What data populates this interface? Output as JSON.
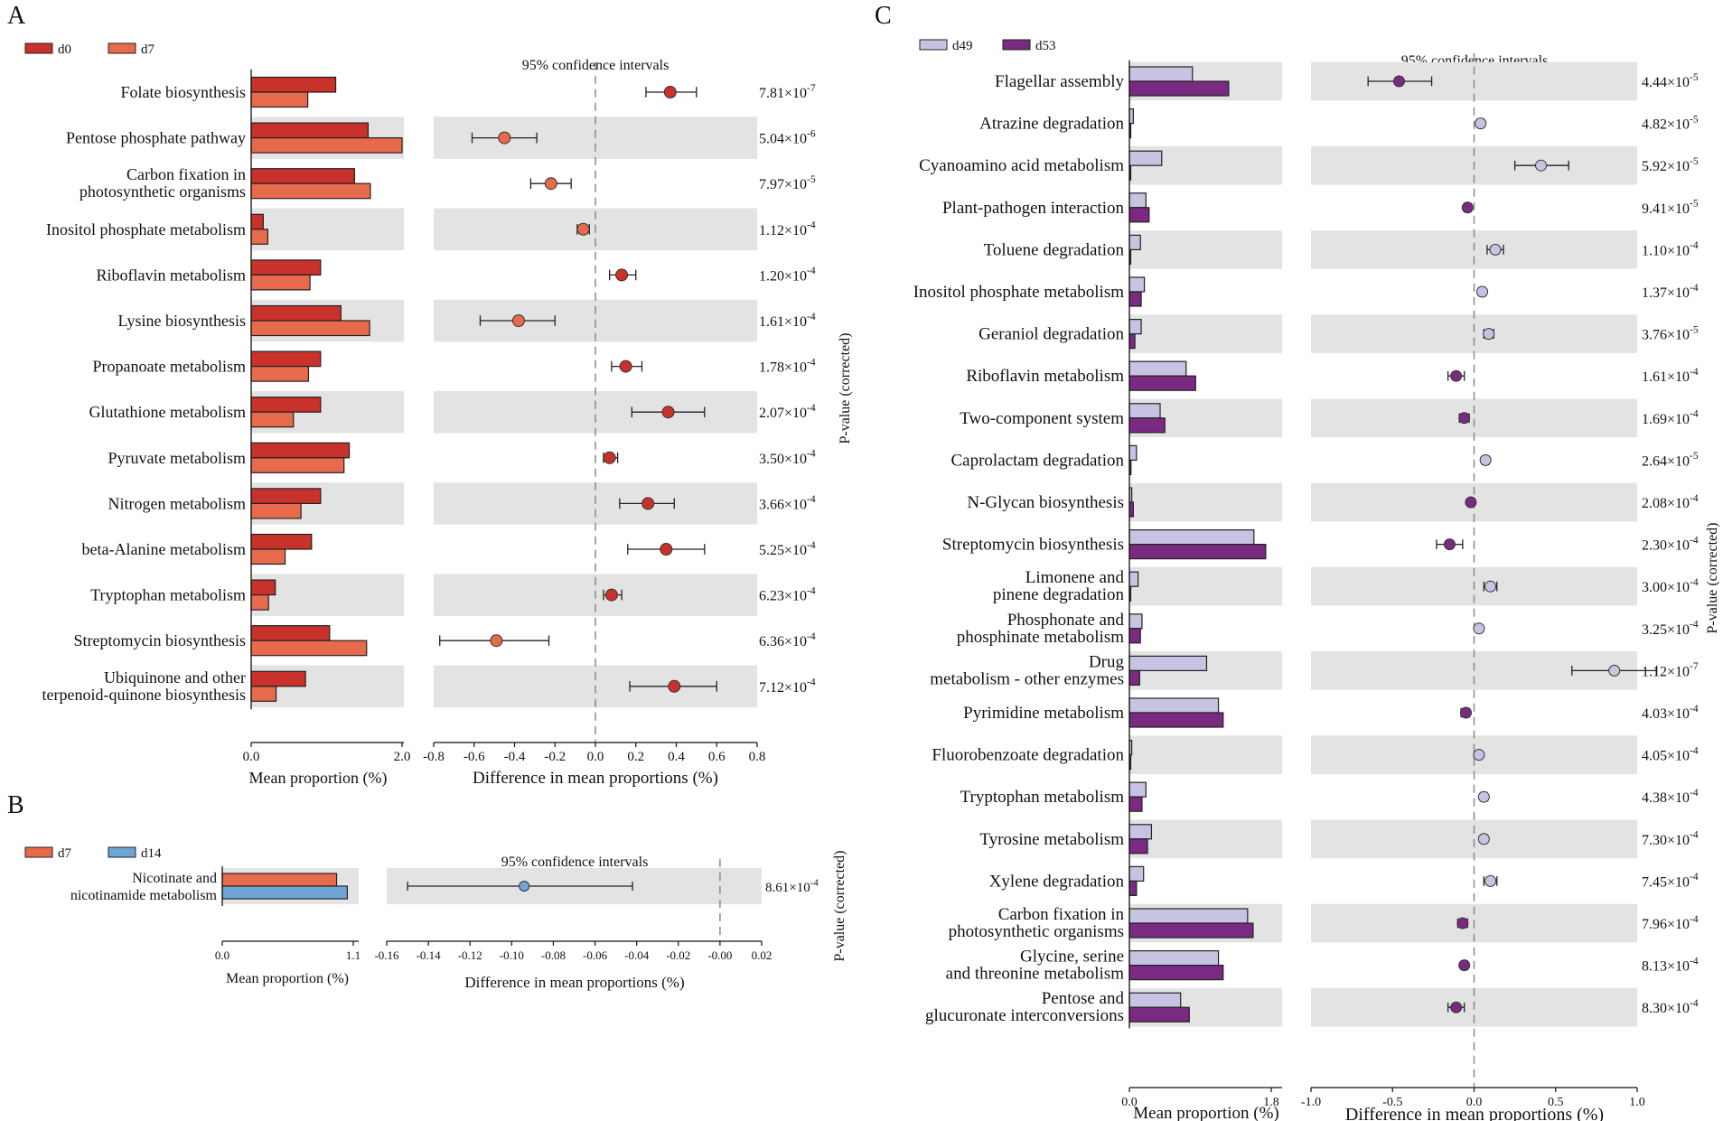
{
  "colors": {
    "d0": "#c8322a",
    "d7": "#e86a4c",
    "d14": "#6fa5d6",
    "d49": "#c9c3e3",
    "d53": "#7b2a82",
    "shade": "#e3e3e3",
    "dash": "#8a8a8a",
    "pointEdge": "#333333"
  },
  "chart_data": [
    {
      "panel": "A",
      "type": "bar",
      "title": "95% confidence intervals",
      "legend": [
        {
          "group": "d0",
          "label": "d0"
        },
        {
          "group": "d7",
          "label": "d7"
        }
      ],
      "xlabel_left": "Mean proportion (%)",
      "xlabel_right": "Difference in mean proportions (%)",
      "pvalue_label": "P-value (corrected)",
      "mean_ticks": [
        "0.0",
        "2.0"
      ],
      "mean_range": [
        0,
        2.0
      ],
      "diff_range": [
        -0.8,
        0.8
      ],
      "diff_ticks": [
        "-0.8",
        "-0.6",
        "-0.4",
        "-0.2",
        "0.0",
        "0.2",
        "0.4",
        "0.6",
        "0.8"
      ],
      "diff_tick_values": [
        -0.8,
        -0.6,
        -0.4,
        -0.2,
        0.0,
        0.2,
        0.4,
        0.6,
        0.8
      ],
      "rows": [
        {
          "label": [
            "Folate biosynthesis"
          ],
          "mean1": 1.12,
          "mean2": 0.75,
          "diff": 0.37,
          "lo": 0.25,
          "hi": 0.5,
          "p_base": "7.81×10",
          "p_exp": "-7"
        },
        {
          "label": [
            "Pentose phosphate pathway"
          ],
          "mean1": 1.55,
          "mean2": 2.0,
          "diff": -0.45,
          "lo": -0.61,
          "hi": -0.29,
          "p_base": "5.04×10",
          "p_exp": "-6"
        },
        {
          "label": [
            "Carbon fixation in",
            "photosynthetic organisms"
          ],
          "mean1": 1.37,
          "mean2": 1.58,
          "diff": -0.22,
          "lo": -0.32,
          "hi": -0.12,
          "p_base": "7.97×10",
          "p_exp": "-5"
        },
        {
          "label": [
            "Inositol phosphate metabolism"
          ],
          "mean1": 0.16,
          "mean2": 0.22,
          "diff": -0.06,
          "lo": -0.09,
          "hi": -0.03,
          "p_base": "1.12×10",
          "p_exp": "-4"
        },
        {
          "label": [
            "Riboflavin metabolism"
          ],
          "mean1": 0.92,
          "mean2": 0.78,
          "diff": 0.13,
          "lo": 0.07,
          "hi": 0.2,
          "p_base": "1.20×10",
          "p_exp": "-4"
        },
        {
          "label": [
            "Lysine biosynthesis"
          ],
          "mean1": 1.19,
          "mean2": 1.57,
          "diff": -0.38,
          "lo": -0.57,
          "hi": -0.2,
          "p_base": "1.61×10",
          "p_exp": "-4"
        },
        {
          "label": [
            "Propanoate metabolism"
          ],
          "mean1": 0.92,
          "mean2": 0.76,
          "diff": 0.15,
          "lo": 0.08,
          "hi": 0.23,
          "p_base": "1.78×10",
          "p_exp": "-4"
        },
        {
          "label": [
            "Glutathione metabolism"
          ],
          "mean1": 0.92,
          "mean2": 0.56,
          "diff": 0.36,
          "lo": 0.18,
          "hi": 0.54,
          "p_base": "2.07×10",
          "p_exp": "-4"
        },
        {
          "label": [
            "Pyruvate metabolism"
          ],
          "mean1": 1.3,
          "mean2": 1.23,
          "diff": 0.07,
          "lo": 0.04,
          "hi": 0.11,
          "p_base": "3.50×10",
          "p_exp": "-4"
        },
        {
          "label": [
            "Nitrogen metabolism"
          ],
          "mean1": 0.92,
          "mean2": 0.66,
          "diff": 0.26,
          "lo": 0.12,
          "hi": 0.39,
          "p_base": "3.66×10",
          "p_exp": "-4"
        },
        {
          "label": [
            "beta-Alanine metabolism"
          ],
          "mean1": 0.8,
          "mean2": 0.45,
          "diff": 0.35,
          "lo": 0.16,
          "hi": 0.54,
          "p_base": "5.25×10",
          "p_exp": "-4"
        },
        {
          "label": [
            "Tryptophan metabolism"
          ],
          "mean1": 0.32,
          "mean2": 0.23,
          "diff": 0.08,
          "lo": 0.04,
          "hi": 0.13,
          "p_base": "6.23×10",
          "p_exp": "-4"
        },
        {
          "label": [
            "Streptomycin biosynthesis"
          ],
          "mean1": 1.04,
          "mean2": 1.53,
          "diff": -0.49,
          "lo": -0.77,
          "hi": -0.23,
          "p_base": "6.36×10",
          "p_exp": "-4"
        },
        {
          "label": [
            "Ubiquinone and other",
            "terpenoid-quinone biosynthesis"
          ],
          "mean1": 0.72,
          "mean2": 0.33,
          "diff": 0.39,
          "lo": 0.17,
          "hi": 0.6,
          "p_base": "7.12×10",
          "p_exp": "-4"
        }
      ]
    },
    {
      "panel": "B",
      "type": "bar",
      "title": "95% confidence intervals",
      "legend": [
        {
          "group": "d7",
          "label": "d7"
        },
        {
          "group": "d14",
          "label": "d14"
        }
      ],
      "xlabel_left": "Mean proportion (%)",
      "xlabel_right": "Difference in mean proportions (%)",
      "pvalue_label": "P-value (corrected)",
      "mean_ticks": [
        "0.0",
        "1.1"
      ],
      "mean_range": [
        0,
        1.1
      ],
      "diff_range": [
        -0.16,
        0.02
      ],
      "diff_ticks": [
        "-0.16",
        "-0.14",
        "-0.12",
        "-0.10",
        "-0.08",
        "-0.06",
        "-0.04",
        "-0.02",
        "-0.00",
        "0.02"
      ],
      "diff_tick_values": [
        -0.16,
        -0.14,
        -0.12,
        -0.1,
        -0.08,
        -0.06,
        -0.04,
        -0.02,
        0.0,
        0.02
      ],
      "rows": [
        {
          "label": [
            "Nicotinate and",
            "nicotinamide metabolism"
          ],
          "mean1": 0.96,
          "mean2": 1.05,
          "diff": -0.094,
          "lo": -0.15,
          "hi": -0.042,
          "p_base": "8.61×10",
          "p_exp": "-4"
        }
      ]
    },
    {
      "panel": "C",
      "type": "bar",
      "title": "95% confidence intervals",
      "legend": [
        {
          "group": "d49",
          "label": "d49"
        },
        {
          "group": "d53",
          "label": "d53"
        }
      ],
      "xlabel_left": "Mean proportion (%)",
      "xlabel_right": "Difference in mean proportions (%)",
      "pvalue_label": "P-value (corrected)",
      "mean_ticks": [
        "0.0",
        "1.8"
      ],
      "mean_range": [
        0,
        1.8
      ],
      "diff_range": [
        -1.0,
        1.0
      ],
      "diff_ticks": [
        "-1.0",
        "-0.5",
        "0.0",
        "0.5",
        "1.0"
      ],
      "diff_tick_values": [
        -1.0,
        -0.5,
        0.0,
        0.5,
        1.0
      ],
      "rows": [
        {
          "label": [
            "Flagellar assembly"
          ],
          "mean1": 0.8,
          "mean2": 1.26,
          "diff": -0.46,
          "lo": -0.65,
          "hi": -0.26,
          "p_base": "4.44×10",
          "p_exp": "-5"
        },
        {
          "label": [
            "Atrazine degradation"
          ],
          "mean1": 0.05,
          "mean2": 0.01,
          "diff": 0.04,
          "lo": 0.02,
          "hi": 0.06,
          "p_base": "4.82×10",
          "p_exp": "-5"
        },
        {
          "label": [
            "Cyanoamino acid metabolism"
          ],
          "mean1": 0.41,
          "mean2": 0.01,
          "diff": 0.41,
          "lo": 0.25,
          "hi": 0.58,
          "p_base": "5.92×10",
          "p_exp": "-5"
        },
        {
          "label": [
            "Plant-pathogen interaction"
          ],
          "mean1": 0.21,
          "mean2": 0.25,
          "diff": -0.04,
          "lo": -0.06,
          "hi": -0.02,
          "p_base": "9.41×10",
          "p_exp": "-5"
        },
        {
          "label": [
            "Toluene degradation"
          ],
          "mean1": 0.14,
          "mean2": 0.01,
          "diff": 0.13,
          "lo": 0.08,
          "hi": 0.18,
          "p_base": "1.10×10",
          "p_exp": "-4"
        },
        {
          "label": [
            "Inositol phosphate metabolism"
          ],
          "mean1": 0.19,
          "mean2": 0.15,
          "diff": 0.05,
          "lo": 0.03,
          "hi": 0.07,
          "p_base": "1.37×10",
          "p_exp": "-4"
        },
        {
          "label": [
            "Geraniol degradation"
          ],
          "mean1": 0.15,
          "mean2": 0.07,
          "diff": 0.09,
          "lo": 0.06,
          "hi": 0.12,
          "p_base": "3.76×10",
          "p_exp": "-5"
        },
        {
          "label": [
            "Riboflavin metabolism"
          ],
          "mean1": 0.72,
          "mean2": 0.84,
          "diff": -0.11,
          "lo": -0.16,
          "hi": -0.06,
          "p_base": "1.61×10",
          "p_exp": "-4"
        },
        {
          "label": [
            "Two-component system"
          ],
          "mean1": 0.39,
          "mean2": 0.45,
          "diff": -0.06,
          "lo": -0.09,
          "hi": -0.03,
          "p_base": "1.69×10",
          "p_exp": "-4"
        },
        {
          "label": [
            "Caprolactam degradation"
          ],
          "mean1": 0.09,
          "mean2": 0.02,
          "diff": 0.07,
          "lo": 0.05,
          "hi": 0.09,
          "p_base": "2.64×10",
          "p_exp": "-5"
        },
        {
          "label": [
            "N-Glycan biosynthesis"
          ],
          "mean1": 0.03,
          "mean2": 0.05,
          "diff": -0.02,
          "lo": -0.03,
          "hi": -0.01,
          "p_base": "2.08×10",
          "p_exp": "-4"
        },
        {
          "label": [
            "Streptomycin biosynthesis"
          ],
          "mean1": 1.58,
          "mean2": 1.73,
          "diff": -0.15,
          "lo": -0.23,
          "hi": -0.07,
          "p_base": "2.30×10",
          "p_exp": "-4"
        },
        {
          "label": [
            "Limonene and",
            "pinene degradation"
          ],
          "mean1": 0.11,
          "mean2": 0.01,
          "diff": 0.1,
          "lo": 0.06,
          "hi": 0.14,
          "p_base": "3.00×10",
          "p_exp": "-4"
        },
        {
          "label": [
            "Phosphonate and",
            "phosphinate metabolism"
          ],
          "mean1": 0.16,
          "mean2": 0.14,
          "diff": 0.03,
          "lo": 0.02,
          "hi": 0.04,
          "p_base": "3.25×10",
          "p_exp": "-4"
        },
        {
          "label": [
            "Drug",
            "metabolism - other enzymes"
          ],
          "mean1": 0.98,
          "mean2": 0.13,
          "diff": 0.86,
          "lo": 0.6,
          "hi": 1.12,
          "p_base": "1.12×10",
          "p_exp": "-7"
        },
        {
          "label": [
            "Pyrimidine metabolism"
          ],
          "mean1": 1.13,
          "mean2": 1.19,
          "diff": -0.05,
          "lo": -0.08,
          "hi": -0.03,
          "p_base": "4.03×10",
          "p_exp": "-4"
        },
        {
          "label": [
            "Fluorobenzoate degradation"
          ],
          "mean1": 0.03,
          "mean2": 0.01,
          "diff": 0.03,
          "lo": 0.02,
          "hi": 0.04,
          "p_base": "4.05×10",
          "p_exp": "-4"
        },
        {
          "label": [
            "Tryptophan metabolism"
          ],
          "mean1": 0.21,
          "mean2": 0.16,
          "diff": 0.06,
          "lo": 0.04,
          "hi": 0.08,
          "p_base": "4.38×10",
          "p_exp": "-4"
        },
        {
          "label": [
            "Tyrosine metabolism"
          ],
          "mean1": 0.28,
          "mean2": 0.23,
          "diff": 0.06,
          "lo": 0.04,
          "hi": 0.08,
          "p_base": "7.30×10",
          "p_exp": "-4"
        },
        {
          "label": [
            "Xylene degradation"
          ],
          "mean1": 0.18,
          "mean2": 0.09,
          "diff": 0.1,
          "lo": 0.06,
          "hi": 0.14,
          "p_base": "7.45×10",
          "p_exp": "-4"
        },
        {
          "label": [
            "Carbon fixation in",
            "photosynthetic organisms"
          ],
          "mean1": 1.5,
          "mean2": 1.57,
          "diff": -0.07,
          "lo": -0.1,
          "hi": -0.04,
          "p_base": "7.96×10",
          "p_exp": "-4"
        },
        {
          "label": [
            "Glycine, serine",
            "and threonine metabolism"
          ],
          "mean1": 1.13,
          "mean2": 1.19,
          "diff": -0.06,
          "lo": -0.08,
          "hi": -0.04,
          "p_base": "8.13×10",
          "p_exp": "-4"
        },
        {
          "label": [
            "Pentose and",
            "glucuronate interconversions"
          ],
          "mean1": 0.65,
          "mean2": 0.76,
          "diff": -0.11,
          "lo": -0.16,
          "hi": -0.06,
          "p_base": "8.30×10",
          "p_exp": "-4"
        }
      ]
    }
  ]
}
